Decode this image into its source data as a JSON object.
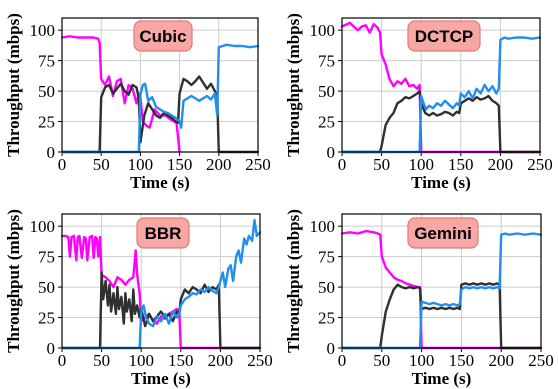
{
  "colors": {
    "flow1": "#ff00ff",
    "flow2": "#303030",
    "flow3": "#1f8ff0",
    "title_box_fill": "#f8a8a4",
    "title_box_stroke": "#e07b78",
    "grid": "#cccccc"
  },
  "chart_data": [
    {
      "type": "line",
      "title": "Cubic",
      "xlabel": "Time (s)",
      "ylabel": "Throughput (mbps)",
      "xlim": [
        0,
        250
      ],
      "ylim": [
        0,
        110
      ],
      "xticks": [
        "0",
        "50",
        "100",
        "150",
        "200",
        "250"
      ],
      "yticks": [
        "0",
        "25",
        "50",
        "75",
        "100"
      ],
      "grid": true,
      "series": [
        {
          "color": "flow1",
          "x": [
            0,
            10,
            20,
            30,
            40,
            46,
            48,
            50,
            55,
            60,
            65,
            70,
            75,
            80,
            85,
            90,
            95,
            98,
            100,
            103,
            107,
            112,
            118,
            125,
            132,
            140,
            146,
            150
          ],
          "y": [
            94,
            95,
            94,
            94,
            94,
            93,
            90,
            60,
            55,
            62,
            46,
            58,
            60,
            40,
            55,
            52,
            40,
            48,
            45,
            25,
            22,
            20,
            35,
            30,
            30,
            26,
            24,
            0
          ]
        },
        {
          "color": "flow2",
          "x": [
            0,
            46,
            48,
            50,
            55,
            60,
            65,
            70,
            75,
            80,
            85,
            90,
            95,
            98,
            100,
            105,
            110,
            115,
            120,
            125,
            130,
            135,
            140,
            145,
            148,
            150,
            155,
            160,
            165,
            170,
            175,
            180,
            185,
            190,
            195,
            198,
            200,
            250
          ],
          "y": [
            0,
            0,
            0,
            45,
            53,
            55,
            48,
            52,
            56,
            50,
            47,
            55,
            53,
            44,
            8,
            30,
            40,
            35,
            30,
            28,
            32,
            30,
            28,
            25,
            24,
            48,
            60,
            58,
            55,
            58,
            62,
            57,
            52,
            56,
            50,
            45,
            0,
            0
          ]
        },
        {
          "color": "flow3",
          "x": [
            0,
            96,
            98,
            100,
            103,
            106,
            110,
            115,
            120,
            125,
            130,
            135,
            140,
            145,
            150,
            152,
            155,
            160,
            165,
            170,
            175,
            180,
            185,
            190,
            195,
            198,
            200,
            205,
            210,
            220,
            230,
            240,
            250
          ],
          "y": [
            0,
            0,
            0,
            47,
            55,
            56,
            42,
            45,
            37,
            35,
            33,
            32,
            30,
            28,
            25,
            20,
            42,
            44,
            46,
            44,
            42,
            44,
            46,
            43,
            48,
            30,
            86,
            87,
            88,
            87,
            87,
            86,
            87
          ]
        }
      ]
    },
    {
      "type": "line",
      "title": "DCTCP",
      "xlabel": "Time (s)",
      "ylabel": "Throughput (mbps)",
      "xlim": [
        0,
        250
      ],
      "ylim": [
        0,
        110
      ],
      "xticks": [
        "0",
        "50",
        "100",
        "150",
        "200",
        "250"
      ],
      "yticks": [
        "0",
        "25",
        "50",
        "75",
        "100"
      ],
      "grid": true,
      "series": [
        {
          "color": "flow1",
          "x": [
            0,
            10,
            20,
            25,
            30,
            35,
            40,
            45,
            48,
            50,
            55,
            60,
            65,
            70,
            75,
            80,
            85,
            90,
            95,
            98,
            100,
            250
          ],
          "y": [
            103,
            106,
            100,
            103,
            104,
            98,
            105,
            102,
            98,
            80,
            72,
            60,
            54,
            58,
            56,
            60,
            54,
            55,
            52,
            55,
            0,
            0
          ]
        },
        {
          "color": "flow2",
          "x": [
            0,
            48,
            50,
            55,
            60,
            65,
            70,
            75,
            80,
            85,
            90,
            95,
            98,
            100,
            105,
            110,
            115,
            120,
            125,
            130,
            135,
            140,
            145,
            148,
            150,
            155,
            160,
            165,
            170,
            175,
            180,
            185,
            190,
            195,
            198,
            200,
            250
          ],
          "y": [
            0,
            0,
            5,
            22,
            28,
            32,
            40,
            42,
            45,
            44,
            46,
            48,
            50,
            40,
            32,
            30,
            32,
            30,
            31,
            33,
            32,
            30,
            33,
            32,
            40,
            42,
            44,
            42,
            45,
            43,
            44,
            46,
            42,
            40,
            38,
            0,
            0
          ]
        },
        {
          "color": "flow3",
          "x": [
            0,
            96,
            98,
            100,
            103,
            106,
            110,
            115,
            120,
            125,
            130,
            135,
            140,
            145,
            148,
            150,
            155,
            160,
            165,
            170,
            175,
            180,
            185,
            190,
            195,
            198,
            200,
            205,
            210,
            220,
            230,
            240,
            250
          ],
          "y": [
            0,
            0,
            0,
            46,
            40,
            35,
            38,
            36,
            40,
            38,
            42,
            39,
            36,
            40,
            38,
            48,
            45,
            50,
            44,
            52,
            48,
            55,
            50,
            54,
            48,
            52,
            92,
            94,
            93,
            94,
            94,
            93,
            94
          ]
        }
      ]
    },
    {
      "type": "line",
      "title": "BBR",
      "xlabel": "Time (s)",
      "ylabel": "Throughput (mbps)",
      "xlim": [
        0,
        250
      ],
      "ylim": [
        0,
        110
      ],
      "xticks": [
        "0",
        "50",
        "100",
        "150",
        "200",
        "250"
      ],
      "yticks": [
        "0",
        "25",
        "50",
        "75",
        "100"
      ],
      "grid": true,
      "series": [
        {
          "color": "flow1",
          "x": [
            0,
            5,
            8,
            10,
            12,
            15,
            18,
            20,
            22,
            25,
            28,
            30,
            32,
            35,
            38,
            40,
            42,
            44,
            46,
            48,
            50,
            55,
            60,
            65,
            70,
            75,
            80,
            85,
            90,
            93,
            95,
            98,
            100,
            105,
            110,
            115,
            120,
            125,
            130,
            135,
            140,
            145,
            148,
            150,
            250
          ],
          "y": [
            92,
            92,
            91,
            75,
            91,
            92,
            72,
            91,
            92,
            74,
            91,
            90,
            72,
            91,
            92,
            74,
            91,
            90,
            75,
            91,
            60,
            58,
            55,
            50,
            58,
            56,
            52,
            56,
            58,
            80,
            60,
            45,
            22,
            25,
            28,
            22,
            20,
            26,
            24,
            28,
            30,
            32,
            30,
            0,
            0
          ]
        },
        {
          "color": "flow2",
          "x": [
            0,
            48,
            50,
            52,
            55,
            58,
            60,
            62,
            65,
            68,
            70,
            72,
            75,
            78,
            80,
            82,
            85,
            88,
            90,
            92,
            95,
            98,
            100,
            105,
            110,
            115,
            120,
            125,
            130,
            135,
            140,
            145,
            148,
            150,
            155,
            160,
            165,
            170,
            175,
            180,
            185,
            190,
            195,
            198,
            200,
            250
          ],
          "y": [
            0,
            0,
            62,
            40,
            55,
            35,
            52,
            30,
            45,
            28,
            50,
            32,
            42,
            20,
            45,
            30,
            40,
            22,
            48,
            28,
            35,
            25,
            32,
            18,
            28,
            22,
            26,
            30,
            25,
            28,
            22,
            30,
            28,
            40,
            48,
            45,
            50,
            48,
            45,
            52,
            46,
            50,
            48,
            52,
            0,
            0
          ]
        },
        {
          "color": "flow3",
          "x": [
            0,
            96,
            98,
            100,
            103,
            106,
            110,
            115,
            120,
            125,
            130,
            135,
            140,
            145,
            148,
            150,
            155,
            160,
            165,
            170,
            175,
            180,
            185,
            190,
            195,
            198,
            200,
            203,
            206,
            210,
            213,
            216,
            220,
            223,
            226,
            230,
            233,
            236,
            240,
            243,
            246,
            250
          ],
          "y": [
            0,
            0,
            0,
            30,
            35,
            25,
            20,
            18,
            26,
            22,
            28,
            20,
            30,
            25,
            28,
            35,
            40,
            42,
            45,
            44,
            48,
            46,
            50,
            47,
            45,
            50,
            55,
            62,
            50,
            65,
            68,
            55,
            75,
            80,
            70,
            90,
            85,
            92,
            88,
            105,
            92,
            95
          ]
        }
      ]
    },
    {
      "type": "line",
      "title": "Gemini",
      "xlabel": "Time (s)",
      "ylabel": "Throughput (mbps)",
      "xlim": [
        0,
        250
      ],
      "ylim": [
        0,
        110
      ],
      "xticks": [
        "0",
        "50",
        "100",
        "150",
        "200",
        "250"
      ],
      "yticks": [
        "0",
        "25",
        "50",
        "75",
        "100"
      ],
      "grid": true,
      "series": [
        {
          "color": "flow1",
          "x": [
            0,
            10,
            20,
            30,
            40,
            45,
            48,
            50,
            55,
            60,
            65,
            70,
            75,
            80,
            85,
            90,
            95,
            98,
            100,
            250
          ],
          "y": [
            94,
            95,
            94,
            96,
            95,
            94,
            93,
            75,
            66,
            62,
            58,
            56,
            55,
            53,
            52,
            51,
            50,
            50,
            0,
            0
          ]
        },
        {
          "color": "flow2",
          "x": [
            0,
            48,
            50,
            55,
            60,
            65,
            70,
            75,
            80,
            85,
            90,
            95,
            98,
            100,
            105,
            110,
            115,
            120,
            125,
            130,
            135,
            140,
            145,
            148,
            150,
            155,
            160,
            165,
            170,
            175,
            180,
            185,
            190,
            195,
            198,
            200,
            250
          ],
          "y": [
            0,
            0,
            10,
            30,
            40,
            48,
            52,
            50,
            49,
            50,
            49,
            50,
            49,
            32,
            33,
            32,
            33,
            32,
            33,
            32,
            33,
            32,
            33,
            32,
            52,
            53,
            52,
            53,
            52,
            53,
            52,
            53,
            52,
            53,
            52,
            0,
            0
          ]
        },
        {
          "color": "flow3",
          "x": [
            0,
            96,
            98,
            100,
            105,
            110,
            115,
            120,
            125,
            130,
            135,
            140,
            145,
            148,
            150,
            155,
            160,
            165,
            170,
            175,
            180,
            185,
            190,
            195,
            198,
            200,
            205,
            210,
            220,
            230,
            240,
            250
          ],
          "y": [
            0,
            0,
            0,
            38,
            37,
            36,
            37,
            36,
            35,
            36,
            35,
            36,
            35,
            36,
            48,
            50,
            49,
            50,
            49,
            50,
            49,
            50,
            49,
            50,
            49,
            93,
            94,
            93,
            94,
            93,
            94,
            93
          ]
        }
      ]
    }
  ]
}
